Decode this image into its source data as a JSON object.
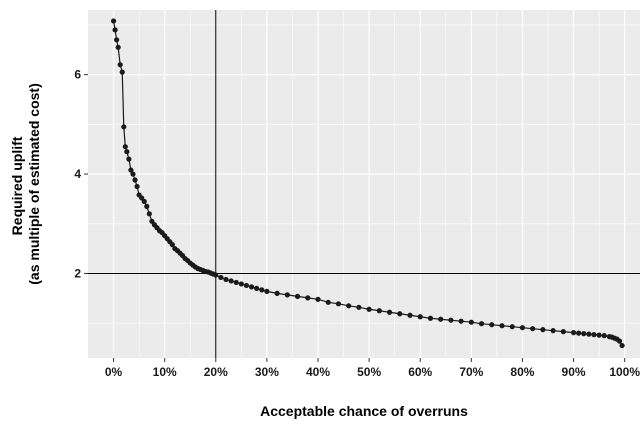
{
  "chart_data": {
    "type": "scatter",
    "title": "",
    "xlabel": "Acceptable chance of overruns",
    "ylabel": [
      "Required uplift",
      "(as multiple of estimated cost)"
    ],
    "xlim": [
      -5,
      103
    ],
    "ylim": [
      0.3,
      7.3
    ],
    "x_ticks": [
      0,
      10,
      20,
      30,
      40,
      50,
      60,
      70,
      80,
      90,
      100
    ],
    "x_tick_labels": [
      "0%",
      "10%",
      "20%",
      "30%",
      "40%",
      "50%",
      "60%",
      "70%",
      "80%",
      "90%",
      "100%"
    ],
    "y_ticks": [
      2,
      4,
      6
    ],
    "y_tick_labels": [
      "2",
      "4",
      "6"
    ],
    "grid": true,
    "background": "#ebebeb",
    "grid_color": "#ffffff",
    "point_color": "#1a1a1a",
    "reference_lines": {
      "vline_x": 20,
      "hline_y": 2
    },
    "series": [
      {
        "points": [
          [
            0.0,
            7.08
          ],
          [
            0.3,
            6.9
          ],
          [
            0.6,
            6.7
          ],
          [
            0.9,
            6.55
          ],
          [
            1.3,
            6.2
          ],
          [
            1.7,
            6.05
          ],
          [
            2.0,
            4.95
          ],
          [
            2.3,
            4.55
          ],
          [
            2.6,
            4.45
          ],
          [
            3.0,
            4.3
          ],
          [
            3.4,
            4.08
          ],
          [
            3.8,
            4.0
          ],
          [
            4.2,
            3.88
          ],
          [
            4.6,
            3.75
          ],
          [
            5.0,
            3.58
          ],
          [
            5.5,
            3.52
          ],
          [
            6.0,
            3.45
          ],
          [
            6.5,
            3.35
          ],
          [
            7.0,
            3.2
          ],
          [
            7.5,
            3.05
          ],
          [
            8.0,
            2.98
          ],
          [
            8.5,
            2.92
          ],
          [
            9.0,
            2.86
          ],
          [
            9.5,
            2.82
          ],
          [
            10.0,
            2.76
          ],
          [
            10.5,
            2.7
          ],
          [
            11.0,
            2.64
          ],
          [
            11.5,
            2.58
          ],
          [
            12.0,
            2.5
          ],
          [
            12.5,
            2.46
          ],
          [
            13.0,
            2.41
          ],
          [
            13.5,
            2.36
          ],
          [
            14.0,
            2.3
          ],
          [
            14.5,
            2.26
          ],
          [
            15.0,
            2.21
          ],
          [
            15.5,
            2.17
          ],
          [
            16.0,
            2.13
          ],
          [
            16.5,
            2.1
          ],
          [
            17.0,
            2.08
          ],
          [
            17.5,
            2.06
          ],
          [
            18.0,
            2.04
          ],
          [
            18.5,
            2.03
          ],
          [
            19.0,
            2.01
          ],
          [
            19.5,
            1.99
          ],
          [
            20.0,
            1.97
          ],
          [
            21.0,
            1.92
          ],
          [
            22.0,
            1.88
          ],
          [
            23.0,
            1.85
          ],
          [
            24.0,
            1.82
          ],
          [
            25.0,
            1.79
          ],
          [
            26.0,
            1.76
          ],
          [
            27.0,
            1.73
          ],
          [
            28.0,
            1.7
          ],
          [
            29.0,
            1.67
          ],
          [
            30.0,
            1.64
          ],
          [
            32.0,
            1.6
          ],
          [
            34.0,
            1.57
          ],
          [
            36.0,
            1.54
          ],
          [
            38.0,
            1.51
          ],
          [
            40.0,
            1.48
          ],
          [
            42.0,
            1.42
          ],
          [
            44.0,
            1.39
          ],
          [
            46.0,
            1.35
          ],
          [
            48.0,
            1.32
          ],
          [
            50.0,
            1.28
          ],
          [
            52.0,
            1.25
          ],
          [
            54.0,
            1.22
          ],
          [
            56.0,
            1.19
          ],
          [
            58.0,
            1.16
          ],
          [
            60.0,
            1.13
          ],
          [
            62.0,
            1.1
          ],
          [
            64.0,
            1.08
          ],
          [
            66.0,
            1.06
          ],
          [
            68.0,
            1.04
          ],
          [
            70.0,
            1.02
          ],
          [
            72.0,
            0.99
          ],
          [
            74.0,
            0.97
          ],
          [
            76.0,
            0.95
          ],
          [
            78.0,
            0.93
          ],
          [
            80.0,
            0.91
          ],
          [
            82.0,
            0.89
          ],
          [
            84.0,
            0.87
          ],
          [
            86.0,
            0.85
          ],
          [
            88.0,
            0.83
          ],
          [
            90.0,
            0.81
          ],
          [
            91.0,
            0.8
          ],
          [
            92.0,
            0.79
          ],
          [
            93.0,
            0.78
          ],
          [
            94.0,
            0.77
          ],
          [
            95.0,
            0.76
          ],
          [
            96.0,
            0.75
          ],
          [
            97.0,
            0.73
          ],
          [
            97.5,
            0.72
          ],
          [
            98.0,
            0.7
          ],
          [
            98.5,
            0.68
          ],
          [
            99.0,
            0.64
          ],
          [
            99.5,
            0.55
          ]
        ]
      }
    ]
  }
}
